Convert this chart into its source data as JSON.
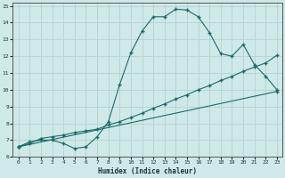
{
  "xlabel": "Humidex (Indice chaleur)",
  "bg_color": "#cfe8e8",
  "grid_color": "#b8d4d4",
  "line_color": "#1a6b6b",
  "xlim": [
    -0.5,
    23.5
  ],
  "ylim": [
    6,
    15.2
  ],
  "xticks": [
    0,
    1,
    2,
    3,
    4,
    5,
    6,
    7,
    8,
    9,
    10,
    11,
    12,
    13,
    14,
    15,
    16,
    17,
    18,
    19,
    20,
    21,
    22,
    23
  ],
  "yticks": [
    6,
    7,
    8,
    9,
    10,
    11,
    12,
    13,
    14,
    15
  ],
  "line1_x": [
    0,
    1,
    2,
    3,
    4,
    5,
    6,
    7,
    8,
    9,
    10,
    11,
    12,
    13,
    14,
    15,
    16,
    17,
    18,
    19,
    20,
    21,
    22,
    23
  ],
  "line1_y": [
    6.6,
    6.9,
    7.0,
    7.0,
    6.8,
    6.5,
    6.6,
    7.2,
    8.1,
    10.3,
    12.2,
    13.5,
    14.35,
    14.35,
    14.8,
    14.75,
    14.35,
    13.4,
    12.15,
    12.0,
    12.7,
    11.5,
    10.8,
    10.0
  ],
  "line2_x": [
    0,
    1,
    2,
    3,
    4,
    5,
    6,
    7,
    8,
    9,
    10,
    11,
    12,
    13,
    14,
    15,
    16,
    17,
    18,
    19,
    20,
    21,
    22,
    23
  ],
  "line2_y": [
    6.6,
    6.8,
    7.1,
    7.2,
    7.3,
    7.45,
    7.55,
    7.65,
    7.9,
    8.1,
    8.35,
    8.6,
    8.9,
    9.15,
    9.45,
    9.7,
    10.0,
    10.25,
    10.55,
    10.8,
    11.1,
    11.35,
    11.6,
    12.05
  ],
  "line3_x": [
    0,
    23
  ],
  "line3_y": [
    6.6,
    9.9
  ]
}
